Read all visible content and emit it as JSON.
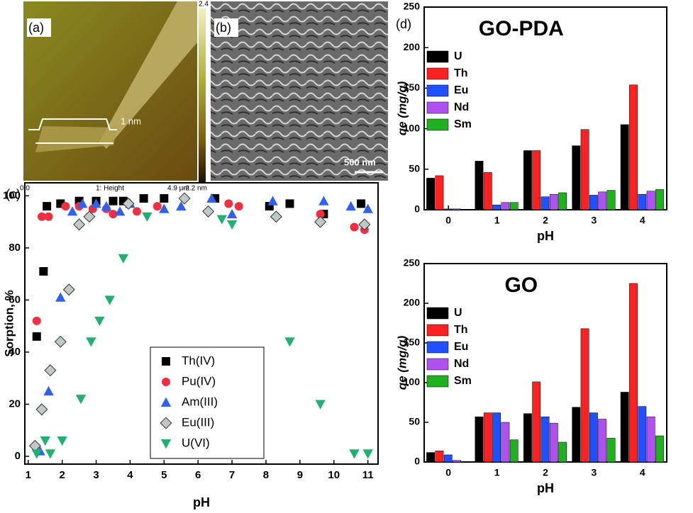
{
  "panels": {
    "a": {
      "label": "(a)",
      "scale_max": "2.4 nm",
      "scale_min": "-2.2 nm",
      "x_start": "0.0",
      "x_caption": "1: Height",
      "x_end": "4.9 µm",
      "profile": "1 nm"
    },
    "b": {
      "label": "(b)",
      "scale_bar": "500 nm"
    }
  },
  "chart_data": [
    {
      "type": "scatter",
      "panel_label": "(c)",
      "xlabel": "pH",
      "ylabel": "Sorption, %",
      "xlim": [
        0.9,
        11.3
      ],
      "xticks": [
        1,
        2,
        3,
        4,
        5,
        6,
        7,
        8,
        9,
        10,
        11
      ],
      "ylim": [
        -3,
        105
      ],
      "yticks": [
        0,
        20,
        40,
        60,
        80,
        100
      ],
      "legend": "lower center",
      "series": [
        {
          "name": "Th(IV)",
          "color": "#000000",
          "marker": "square",
          "x": [
            1.25,
            1.45,
            1.55,
            1.95,
            2.5,
            3.0,
            3.5,
            3.8,
            4.4,
            5.0,
            6.5,
            8.1,
            8.7,
            9.7,
            10.8
          ],
          "values": [
            46,
            71,
            96,
            97,
            98,
            98,
            98,
            98,
            99,
            99,
            99,
            96,
            97,
            93,
            97
          ]
        },
        {
          "name": "Pu(IV)",
          "color": "#f03040",
          "marker": "circle",
          "x": [
            1.25,
            1.4,
            1.6,
            2.1,
            2.5,
            2.9,
            3.3,
            3.5,
            4.2,
            4.8,
            6.9,
            7.2,
            9.6,
            10.6,
            10.9
          ],
          "values": [
            52,
            92,
            92,
            96,
            96,
            95,
            95,
            93,
            94,
            96,
            97,
            96,
            93,
            88,
            87
          ]
        },
        {
          "name": "Am(III)",
          "color": "#3060f0",
          "marker": "triangle-up",
          "x": [
            1.35,
            1.6,
            1.95,
            2.3,
            2.6,
            3.0,
            3.3,
            3.7,
            4.0,
            5.0,
            5.5,
            6.4,
            7.0,
            8.2,
            9.7,
            10.5,
            11.0
          ],
          "values": [
            2,
            25,
            61,
            94,
            97,
            97,
            96,
            94,
            97,
            95,
            96,
            99,
            93,
            98,
            98,
            96,
            95
          ]
        },
        {
          "name": "Eu(III)",
          "color": "#c0c8c8",
          "marker": "diamond",
          "x": [
            1.2,
            1.4,
            1.65,
            1.95,
            2.2,
            2.5,
            2.8,
            3.95,
            5.6,
            6.3,
            8.3,
            9.6,
            10.9
          ],
          "values": [
            4,
            18,
            33,
            44,
            64,
            89,
            92,
            97,
            99,
            94,
            92,
            90,
            89
          ]
        },
        {
          "name": "U(VI)",
          "color": "#20b070",
          "marker": "triangle-down",
          "x": [
            1.25,
            1.5,
            1.65,
            2.0,
            2.55,
            2.85,
            3.1,
            3.4,
            3.8,
            4.5,
            6.7,
            7.0,
            8.7,
            9.6,
            10.6,
            11.0
          ],
          "values": [
            1,
            6,
            1,
            6,
            22,
            44,
            52,
            60,
            76,
            92,
            91,
            89,
            44,
            20,
            1,
            1
          ]
        }
      ]
    },
    {
      "type": "bar",
      "panel_label": "(d)",
      "title": "GO-PDA",
      "xlabel": "pH",
      "ylabel": "qe (mg/g)",
      "categories": [
        "0",
        "1",
        "2",
        "3",
        "4"
      ],
      "ylim": [
        0,
        250
      ],
      "yticks": [
        0,
        50,
        100,
        150,
        200,
        250
      ],
      "legend": "upper left",
      "series": [
        {
          "name": "U",
          "color": "#000000",
          "values": [
            39,
            60,
            73,
            79,
            105
          ]
        },
        {
          "name": "Th",
          "color": "#ff2020",
          "values": [
            42,
            46,
            73,
            99,
            154
          ]
        },
        {
          "name": "Eu",
          "color": "#2050ff",
          "values": [
            1,
            6,
            16,
            18,
            19
          ]
        },
        {
          "name": "Nd",
          "color": "#b050f0",
          "values": [
            1,
            9,
            19,
            22,
            23
          ]
        },
        {
          "name": "Sm",
          "color": "#20b020",
          "values": [
            0,
            9,
            21,
            24,
            25
          ]
        }
      ]
    },
    {
      "type": "bar",
      "title": "GO",
      "xlabel": "pH",
      "ylabel": "qe (mg/g)",
      "categories": [
        "0",
        "1",
        "2",
        "3",
        "4"
      ],
      "ylim": [
        0,
        250
      ],
      "yticks": [
        0,
        50,
        100,
        150,
        200,
        250
      ],
      "legend": "upper left",
      "series": [
        {
          "name": "U",
          "color": "#000000",
          "values": [
            12,
            57,
            61,
            69,
            88
          ]
        },
        {
          "name": "Th",
          "color": "#ff2020",
          "values": [
            14,
            62,
            101,
            168,
            225
          ]
        },
        {
          "name": "Eu",
          "color": "#2050ff",
          "values": [
            9,
            62,
            57,
            62,
            70
          ]
        },
        {
          "name": "Nd",
          "color": "#b050f0",
          "values": [
            2,
            50,
            49,
            54,
            57
          ]
        },
        {
          "name": "Sm",
          "color": "#20b020",
          "values": [
            0,
            28,
            25,
            30,
            33
          ]
        }
      ]
    }
  ]
}
